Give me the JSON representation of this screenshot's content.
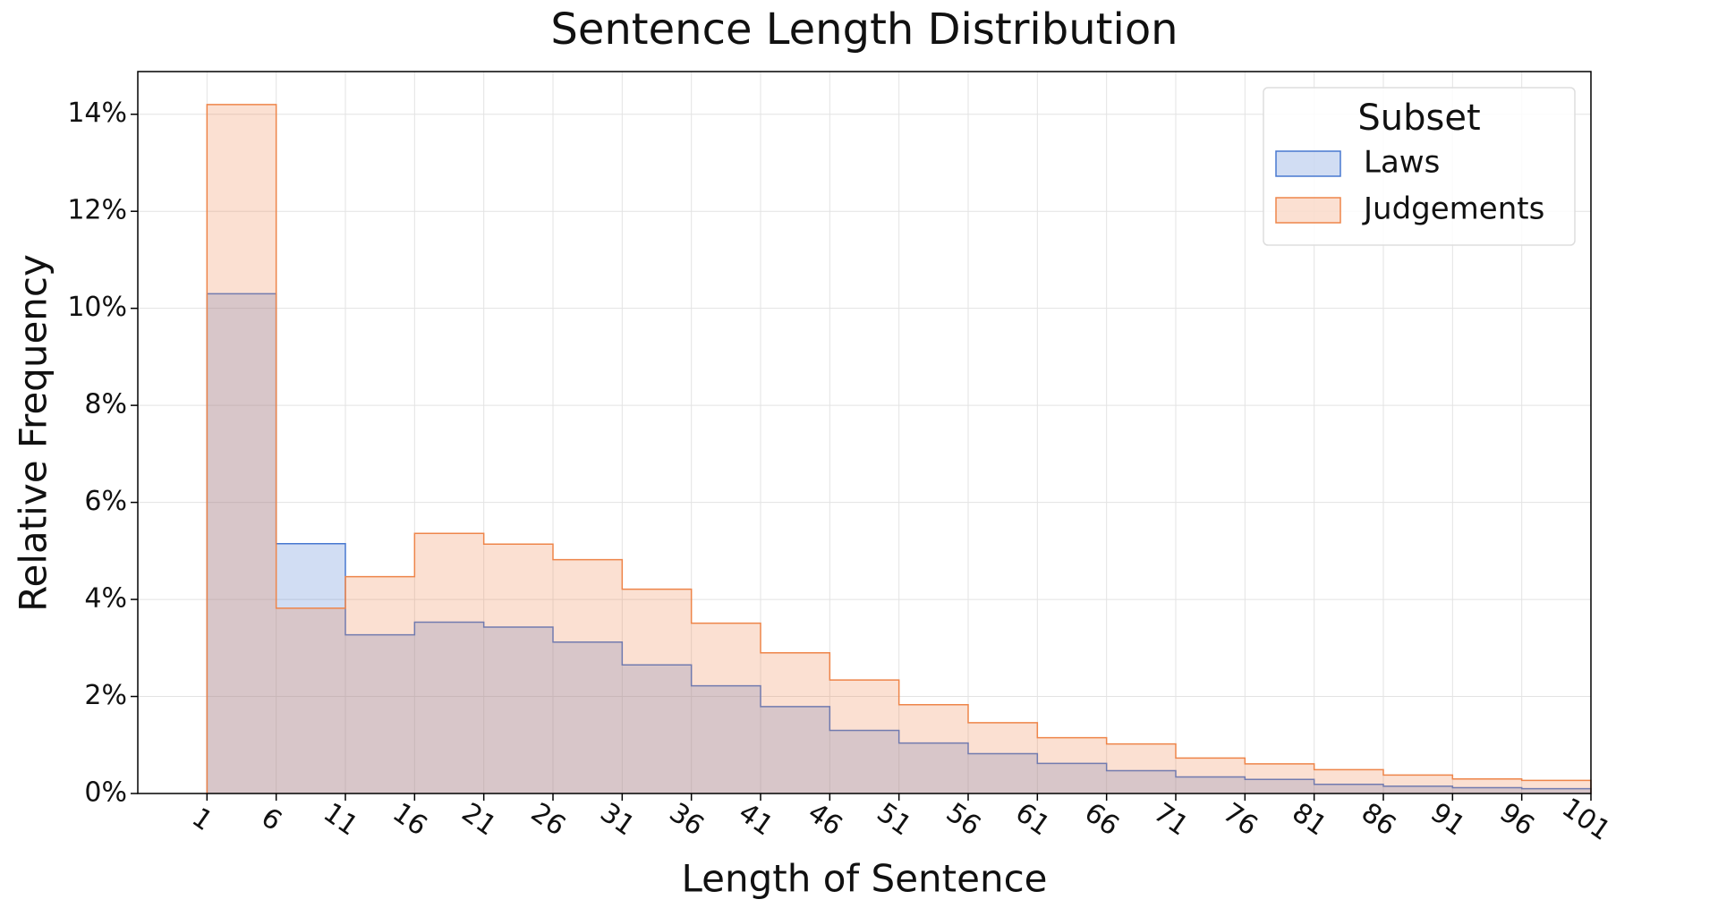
{
  "chart_data": {
    "type": "histogram",
    "title": "Sentence Length Distribution",
    "x_label": "Length of Sentence",
    "y_label": "Relative Frequency",
    "bins": [
      1,
      6,
      11,
      16,
      21,
      26,
      31,
      36,
      41,
      46,
      51,
      56,
      61,
      66,
      71,
      76,
      81,
      86,
      91,
      96,
      101
    ],
    "series": [
      {
        "name": "Laws",
        "color": "#4878d0",
        "values": [
          10.3,
          5.15,
          3.27,
          3.53,
          3.43,
          3.12,
          2.65,
          2.22,
          1.79,
          1.3,
          1.04,
          0.82,
          0.62,
          0.47,
          0.34,
          0.29,
          0.19,
          0.15,
          0.12,
          0.1
        ]
      },
      {
        "name": "Judgements",
        "color": "#ee854a",
        "values": [
          14.2,
          3.82,
          4.47,
          5.36,
          5.14,
          4.82,
          4.21,
          3.51,
          2.9,
          2.34,
          1.83,
          1.46,
          1.15,
          1.02,
          0.73,
          0.61,
          0.49,
          0.38,
          0.3,
          0.27
        ]
      }
    ],
    "legend_title": "Subset",
    "legend_position": "upper right",
    "xlim": [
      -4,
      101
    ],
    "xticks": [
      1,
      6,
      11,
      16,
      21,
      26,
      31,
      36,
      41,
      46,
      51,
      56,
      61,
      66,
      71,
      76,
      81,
      86,
      91,
      96,
      101
    ],
    "ylim": [
      0,
      14.88
    ],
    "yticks": [
      {
        "value": 0,
        "label": "0%"
      },
      {
        "value": 2,
        "label": "2%"
      },
      {
        "value": 4,
        "label": "4%"
      },
      {
        "value": 6,
        "label": "6%"
      },
      {
        "value": 8,
        "label": "8%"
      },
      {
        "value": 10,
        "label": "10%"
      },
      {
        "value": 12,
        "label": "12%"
      },
      {
        "value": 14,
        "label": "14%"
      }
    ],
    "grid": true
  }
}
